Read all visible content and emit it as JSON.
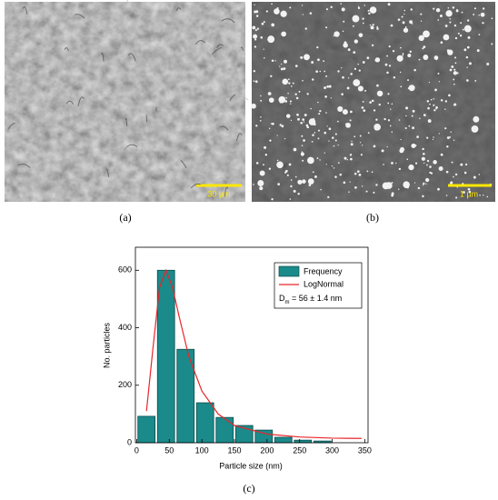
{
  "panels": [
    {
      "scale_bar": "30 µm",
      "caption": "(a)"
    },
    {
      "scale_bar": "1 µm",
      "caption": "(b)"
    }
  ],
  "chart_data": {
    "type": "histogram",
    "caption": "(c)",
    "x_label": "Particle size (nm)",
    "y_label": "No. particles",
    "bins": [
      0,
      30,
      60,
      90,
      120,
      150,
      180,
      210,
      240,
      270,
      300
    ],
    "counts": [
      92,
      600,
      325,
      139,
      88,
      60,
      44,
      19,
      9,
      6
    ],
    "name": "Frequency",
    "color": "#1b8a8a",
    "series": [
      {
        "name": "LogNormal",
        "color": "#e8262b",
        "x": [
          15,
          25,
          35,
          45,
          55,
          65,
          80,
          100,
          125,
          150,
          200,
          250,
          300,
          345
        ],
        "values": [
          110,
          330,
          540,
          600,
          540,
          440,
          300,
          180,
          100,
          60,
          30,
          20,
          16,
          15
        ]
      }
    ],
    "annotation": {
      "base": "D",
      "sub": "m",
      "text": " = 56 ± 1.4 nm"
    },
    "xlim": [
      -2,
      355
    ],
    "xticks": [
      0,
      50,
      100,
      150,
      200,
      250,
      300,
      350
    ],
    "ylim": [
      0,
      680
    ],
    "yticks": [
      0,
      200,
      400,
      600
    ],
    "legend": "upper right"
  }
}
